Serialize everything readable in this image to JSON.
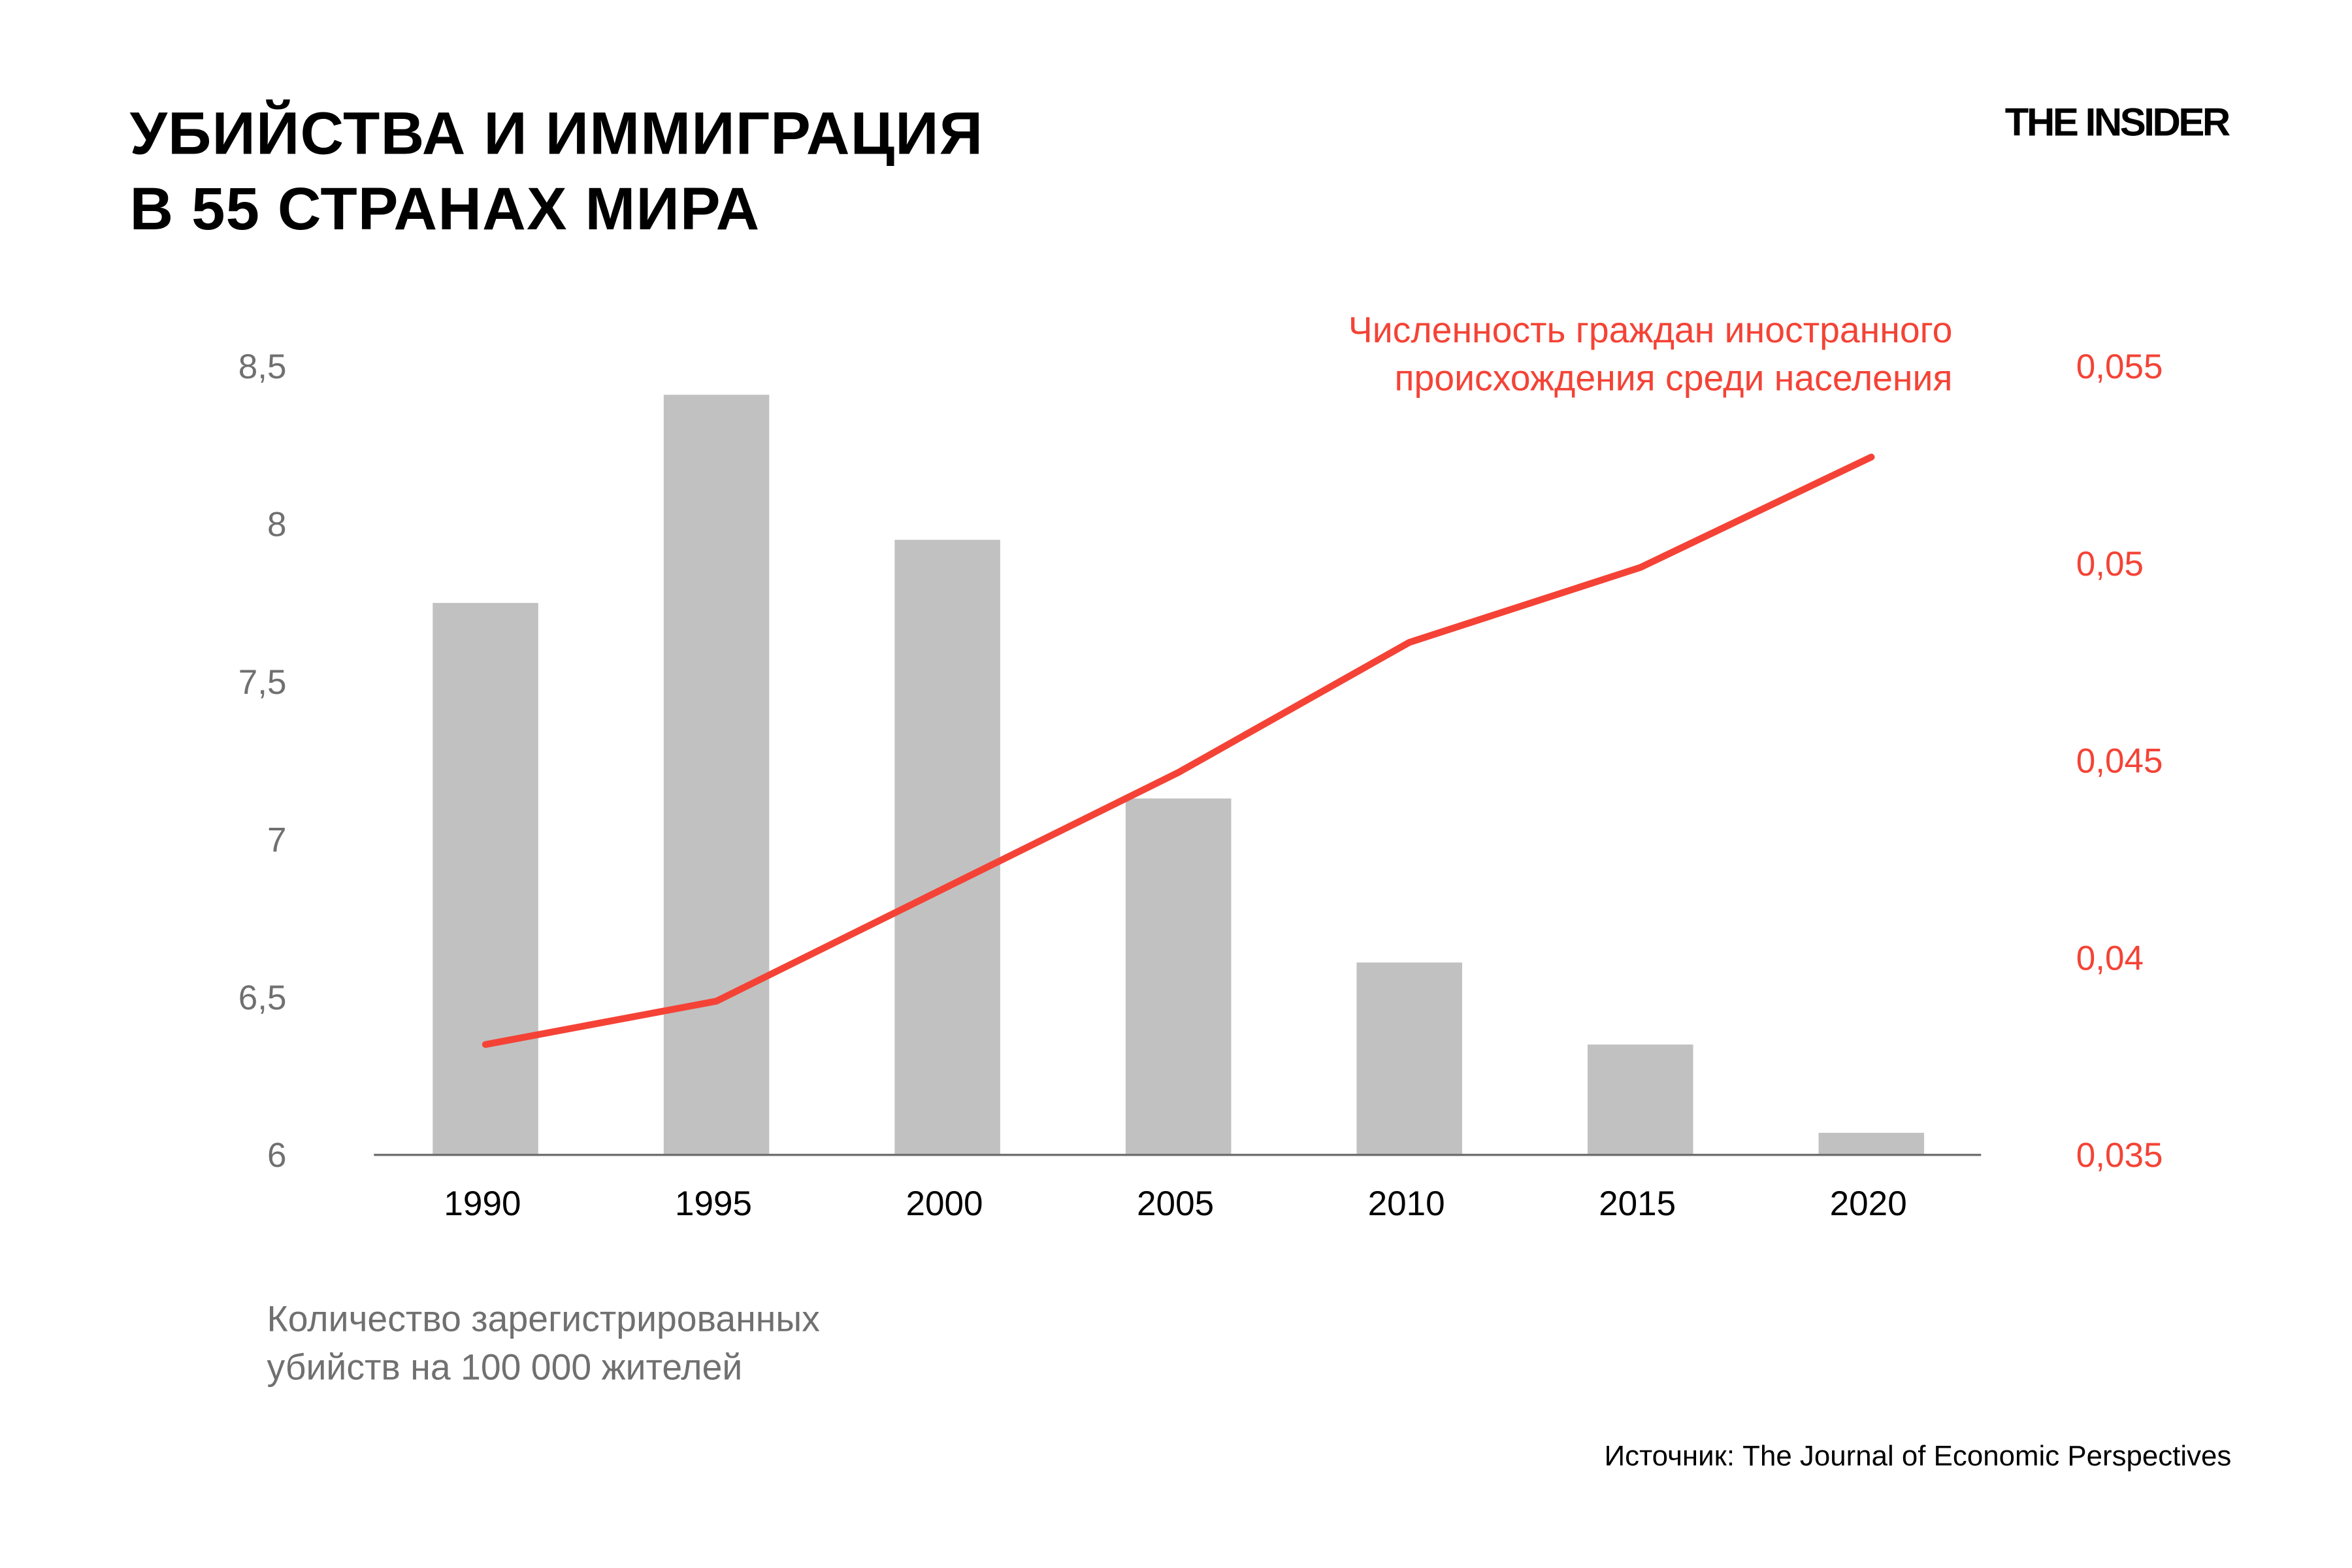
{
  "title": [
    "УБИЙСТВА И ИММИГРАЦИЯ",
    "В 55 СТРАНАХ МИРА"
  ],
  "logo": "THE INSIDER",
  "source": "Источник: The Journal of Economic Perspectives",
  "chart_data": {
    "type": "bar+line",
    "categories": [
      "1990",
      "1995",
      "2000",
      "2005",
      "2010",
      "2015",
      "2020"
    ],
    "series": [
      {
        "name": "Количество зарегистрированных убийств на 100 000 жителей",
        "name_lines": [
          "Количество зарегистрированных",
          "убийств на 100 000 жителей"
        ],
        "type": "bar",
        "axis": "left",
        "color": "#c1c1c1",
        "values": [
          7.75,
          8.41,
          7.95,
          7.13,
          6.61,
          6.35,
          6.07
        ]
      },
      {
        "name": "Численность граждан иностранного происхождения среди населения",
        "name_lines": [
          "Численность граждан иностранного",
          "происхождения среди населения"
        ],
        "type": "line",
        "axis": "right",
        "color": "#f44336",
        "values": [
          0.0378,
          0.0389,
          0.0418,
          0.0447,
          0.048,
          0.0499,
          0.0527
        ]
      }
    ],
    "left_axis": {
      "range": [
        6,
        8.5
      ],
      "ticks": [
        "6",
        "6,5",
        "7",
        "7,5",
        "8",
        "8,5"
      ],
      "tick_values": [
        6,
        6.5,
        7,
        7.5,
        8,
        8.5
      ]
    },
    "right_axis": {
      "range": [
        0.035,
        0.055
      ],
      "ticks": [
        "0,035",
        "0,04",
        "0,045",
        "0,05",
        "0,055"
      ],
      "tick_values": [
        0.035,
        0.04,
        0.045,
        0.05,
        0.055
      ]
    },
    "grid": false
  }
}
